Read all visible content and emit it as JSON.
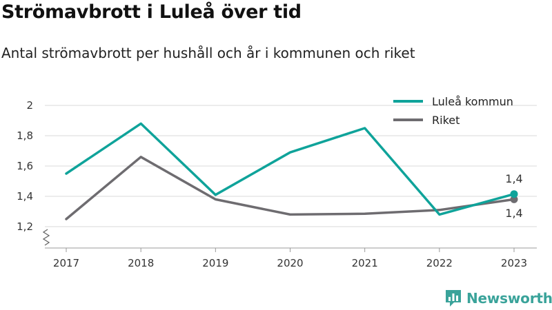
{
  "header": {
    "title": "Strömavbrott i Luleå över tid",
    "subtitle": "Antal strömavbrott per hushåll och år i kommunen och riket"
  },
  "chart_data": {
    "type": "line",
    "x": [
      "2017",
      "2018",
      "2019",
      "2020",
      "2021",
      "2022",
      "2023"
    ],
    "series": [
      {
        "name": "Luleå kommun",
        "color": "#0fa39a",
        "values": [
          1.55,
          1.88,
          1.41,
          1.69,
          1.85,
          1.28,
          1.415
        ]
      },
      {
        "name": "Riket",
        "color": "#6e6c70",
        "values": [
          1.25,
          1.66,
          1.38,
          1.28,
          1.285,
          1.31,
          1.38
        ]
      }
    ],
    "yticks": [
      {
        "value": 1.2,
        "label": "1,2"
      },
      {
        "value": 1.4,
        "label": "1,4"
      },
      {
        "value": 1.6,
        "label": "1,6"
      },
      {
        "value": 1.8,
        "label": "1,8"
      },
      {
        "value": 2.0,
        "label": "2"
      }
    ],
    "ylim": [
      1.2,
      2.0
    ],
    "axis_break": true,
    "grid": true,
    "legend": "top-right",
    "end_labels": [
      "1,4",
      "1,4"
    ]
  },
  "brand": {
    "name": "Newsworthy",
    "icon": "newsworthy-logo-icon",
    "color": "#3aa39a"
  }
}
